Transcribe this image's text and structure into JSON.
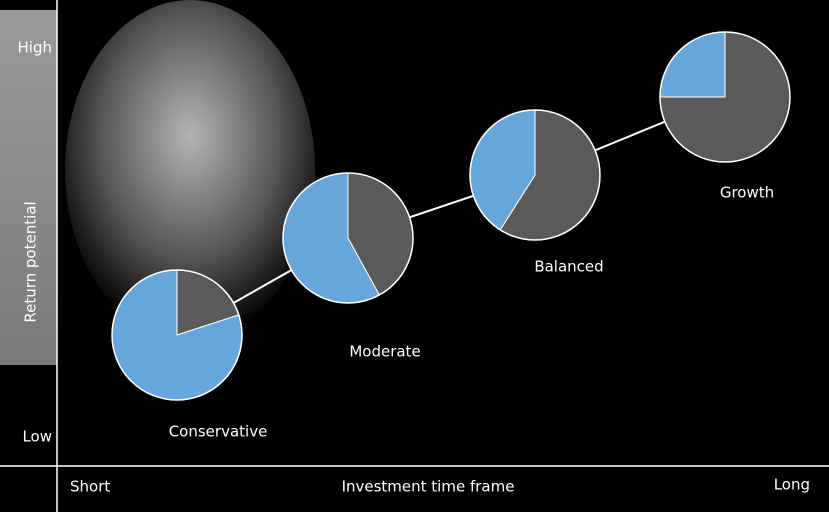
{
  "axes": {
    "y_high": "High",
    "y_label": "Return potential",
    "y_low": "Low",
    "x_short": "Short",
    "x_label": "Investment time frame",
    "x_long": "Long"
  },
  "chart_data": [
    {
      "type": "pie",
      "title": "Conservative",
      "values": [
        20,
        80
      ],
      "colors": [
        "#5a5a5a",
        "#66a6dc"
      ]
    },
    {
      "type": "pie",
      "title": "Moderate",
      "values": [
        42,
        58
      ],
      "colors": [
        "#5a5a5a",
        "#66a6dc"
      ]
    },
    {
      "type": "pie",
      "title": "Balanced",
      "values": [
        59,
        41
      ],
      "colors": [
        "#5a5a5a",
        "#66a6dc"
      ]
    },
    {
      "type": "pie",
      "title": "Growth",
      "values": [
        75,
        25
      ],
      "colors": [
        "#5a5a5a",
        "#66a6dc"
      ]
    }
  ]
}
